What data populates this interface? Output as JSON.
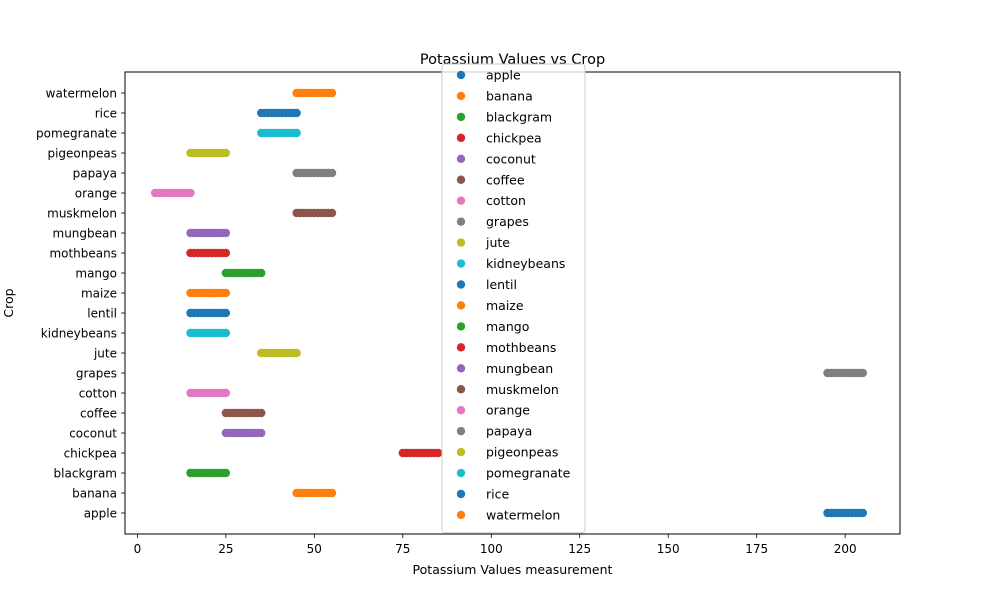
{
  "chart_data": {
    "type": "scatter",
    "title": "Potassium Values vs Crop",
    "xlabel": "Potassium Values measurement",
    "ylabel": "Crop",
    "xlim": [
      -3.5,
      215.5
    ],
    "x_ticks": [
      0,
      25,
      50,
      75,
      100,
      125,
      150,
      175,
      200
    ],
    "grid": false,
    "legend_position": "top-center",
    "categories": [
      "apple",
      "banana",
      "blackgram",
      "chickpea",
      "coconut",
      "coffee",
      "cotton",
      "grapes",
      "jute",
      "kidneybeans",
      "lentil",
      "maize",
      "mango",
      "mothbeans",
      "mungbean",
      "muskmelon",
      "orange",
      "papaya",
      "pigeonpeas",
      "pomegranate",
      "rice",
      "watermelon"
    ],
    "series": [
      {
        "name": "apple",
        "color": "#1f77b4",
        "x_range": [
          195,
          205
        ]
      },
      {
        "name": "banana",
        "color": "#ff7f0e",
        "x_range": [
          45,
          55
        ]
      },
      {
        "name": "blackgram",
        "color": "#2ca02c",
        "x_range": [
          15,
          25
        ]
      },
      {
        "name": "chickpea",
        "color": "#d62728",
        "x_range": [
          75,
          85
        ]
      },
      {
        "name": "coconut",
        "color": "#9467bd",
        "x_range": [
          25,
          35
        ]
      },
      {
        "name": "coffee",
        "color": "#8c564b",
        "x_range": [
          25,
          35
        ]
      },
      {
        "name": "cotton",
        "color": "#e377c2",
        "x_range": [
          15,
          25
        ]
      },
      {
        "name": "grapes",
        "color": "#7f7f7f",
        "x_range": [
          195,
          205
        ]
      },
      {
        "name": "jute",
        "color": "#bcbd22",
        "x_range": [
          35,
          45
        ]
      },
      {
        "name": "kidneybeans",
        "color": "#17becf",
        "x_range": [
          15,
          25
        ]
      },
      {
        "name": "lentil",
        "color": "#1f77b4",
        "x_range": [
          15,
          25
        ]
      },
      {
        "name": "maize",
        "color": "#ff7f0e",
        "x_range": [
          15,
          25
        ]
      },
      {
        "name": "mango",
        "color": "#2ca02c",
        "x_range": [
          25,
          35
        ]
      },
      {
        "name": "mothbeans",
        "color": "#d62728",
        "x_range": [
          15,
          25
        ]
      },
      {
        "name": "mungbean",
        "color": "#9467bd",
        "x_range": [
          15,
          25
        ]
      },
      {
        "name": "muskmelon",
        "color": "#8c564b",
        "x_range": [
          45,
          55
        ]
      },
      {
        "name": "orange",
        "color": "#e377c2",
        "x_range": [
          5,
          15
        ]
      },
      {
        "name": "papaya",
        "color": "#7f7f7f",
        "x_range": [
          45,
          55
        ]
      },
      {
        "name": "pigeonpeas",
        "color": "#bcbd22",
        "x_range": [
          15,
          25
        ]
      },
      {
        "name": "pomegranate",
        "color": "#17becf",
        "x_range": [
          35,
          45
        ]
      },
      {
        "name": "rice",
        "color": "#1f77b4",
        "x_range": [
          35,
          45
        ]
      },
      {
        "name": "watermelon",
        "color": "#ff7f0e",
        "x_range": [
          45,
          55
        ]
      }
    ]
  }
}
